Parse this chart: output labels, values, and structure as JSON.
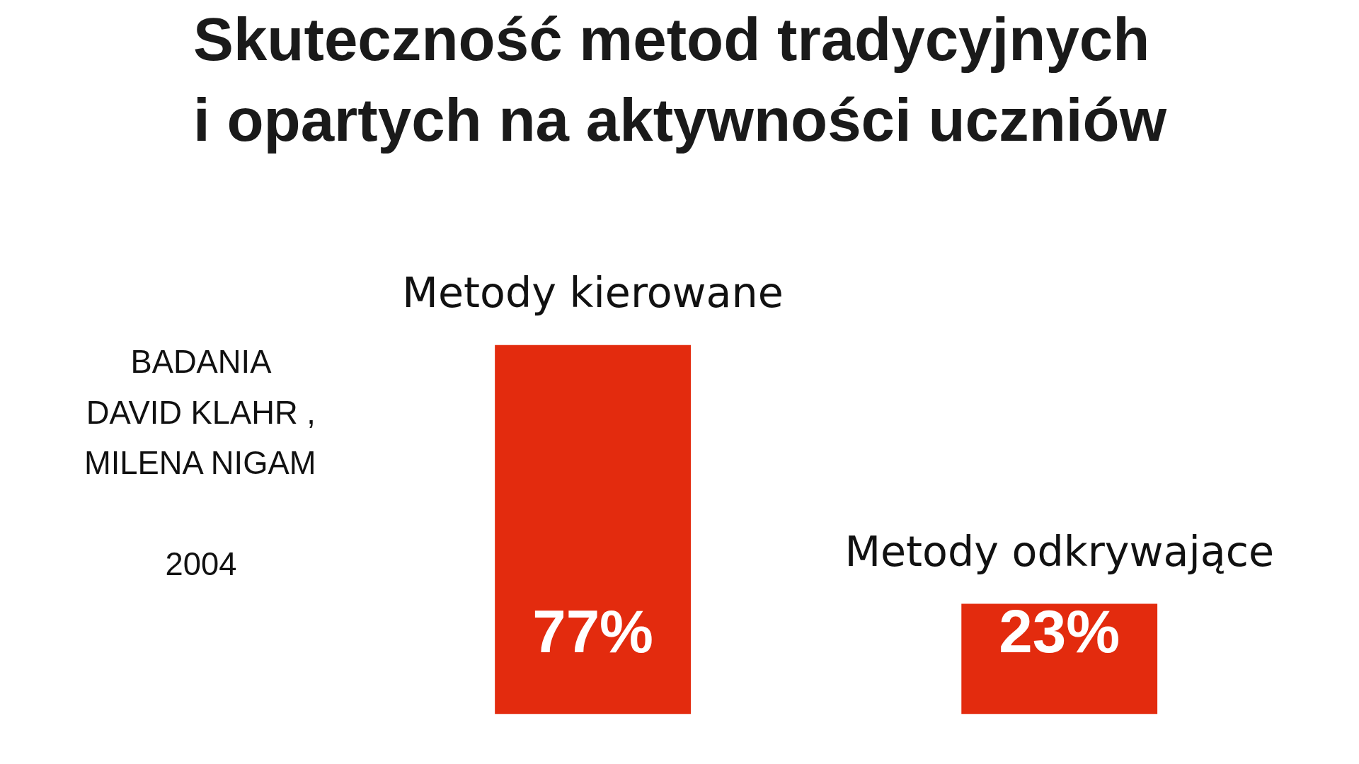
{
  "chart_data": {
    "type": "bar",
    "title": "Skuteczność metod tradycyjnych\ni opartych na aktywności uczniów",
    "categories": [
      "Metody kierowane",
      "Metody odkrywające"
    ],
    "values": [
      77,
      23
    ],
    "color": "#e32b0e",
    "data_labels": true,
    "value_labels": [
      "77%",
      "23%"
    ],
    "grid": false,
    "annotations": [
      "BADANIA\nDAVID KLAHR ,\nMILENA NIGAM\n\n2004"
    ]
  }
}
